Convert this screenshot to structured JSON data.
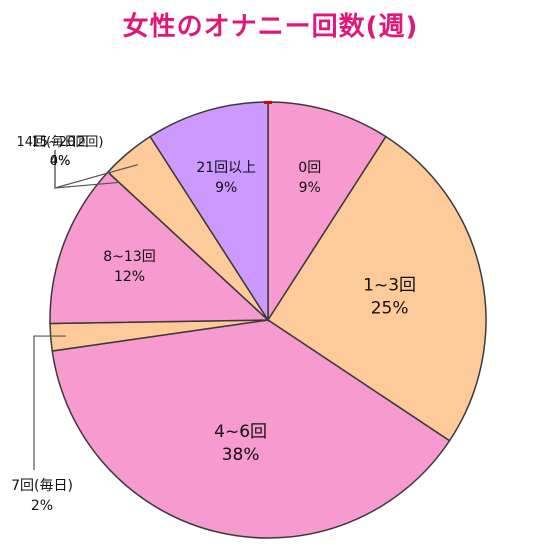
{
  "colors": {
    "title": "#e0177a",
    "outline": "#3a3a3a",
    "leader": "#555555",
    "pink": "#f79ad0",
    "peach": "#fccb99",
    "lavender": "#cc99ff",
    "marker": "#e00000"
  },
  "chart_data": {
    "type": "pie",
    "title": "女性のオナニー回数(週)",
    "slices": [
      {
        "label": "0回",
        "value": 9,
        "display": "9%",
        "color": "#f79ad0"
      },
      {
        "label": "1~3回",
        "value": 25,
        "display": "25%",
        "color": "#fccb99"
      },
      {
        "label": "4~6回",
        "value": 38,
        "display": "38%",
        "color": "#f79ad0"
      },
      {
        "label": "7回(毎日)",
        "value": 2,
        "display": "2%",
        "color": "#fccb99"
      },
      {
        "label": "8~13回",
        "value": 12,
        "display": "12%",
        "color": "#f79ad0"
      },
      {
        "label": "14回(毎日2回)",
        "value": 0,
        "display": "0%",
        "color": "#f79ad0"
      },
      {
        "label": "15~20回",
        "value": 4,
        "display": "4%",
        "color": "#fccb99"
      },
      {
        "label": "21回以上",
        "value": 9,
        "display": "9%",
        "color": "#cc99ff"
      }
    ],
    "start": "12 o'clock",
    "direction": "clockwise",
    "legend": "none"
  }
}
